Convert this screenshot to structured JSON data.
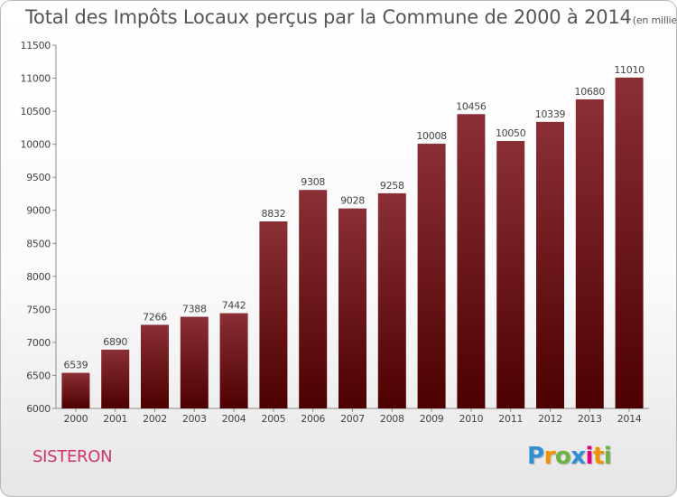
{
  "title": "Total des Impôts Locaux perçus par la Commune de 2000 à 2014",
  "title_unit": "(en milliers d'€)",
  "commune": "SISTERON",
  "brand": {
    "letters": [
      "P",
      "r",
      "o",
      "x",
      "i",
      "t",
      "i"
    ],
    "colors": [
      "#2e8fd6",
      "#f39200",
      "#6cb33f",
      "#2e8fd6",
      "#e3007e",
      "#f39200",
      "#6cb33f"
    ]
  },
  "chart_data": {
    "type": "bar",
    "categories": [
      "2000",
      "2001",
      "2002",
      "2003",
      "2004",
      "2005",
      "2006",
      "2007",
      "2008",
      "2009",
      "2010",
      "2011",
      "2012",
      "2013",
      "2014"
    ],
    "values": [
      6539,
      6890,
      7266,
      7388,
      7442,
      8832,
      9308,
      9028,
      9258,
      10008,
      10456,
      10050,
      10339,
      10680,
      11010
    ],
    "ylim": [
      6000,
      11500
    ],
    "yticks": [
      6000,
      6500,
      7000,
      7500,
      8000,
      8500,
      9000,
      9500,
      10000,
      10500,
      11000,
      11500
    ],
    "grid": false,
    "bar_color_top": "#8a2f36",
    "bar_color_bottom": "#4d0000"
  }
}
